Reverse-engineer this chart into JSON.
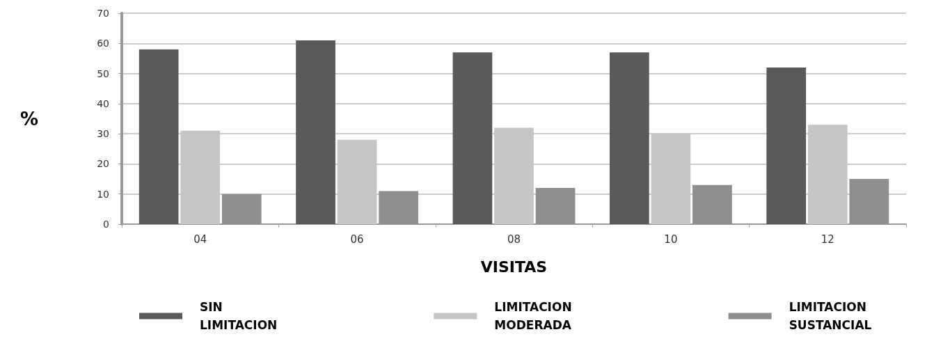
{
  "chart_data": {
    "type": "bar",
    "xlabel": "VISITAS",
    "ylabel": "%",
    "categories": [
      "04",
      "06",
      "08",
      "10",
      "12"
    ],
    "series": [
      {
        "name": "SIN LIMITACION",
        "color": "#5a5a5c",
        "values": [
          58,
          61,
          57,
          57,
          52
        ]
      },
      {
        "name": "LIMITACION MODERADA",
        "color": "#c6c6c8",
        "values": [
          31,
          28,
          32,
          30,
          33
        ]
      },
      {
        "name": "LIMITACION SUSTANCIAL",
        "color": "#8e8e90",
        "values": [
          10,
          11,
          12,
          13,
          15
        ]
      }
    ],
    "ylim": [
      0,
      70
    ],
    "yticks": [
      0,
      10,
      20,
      30,
      40,
      50,
      60,
      70
    ],
    "grid": "y",
    "legend": "bottom"
  }
}
